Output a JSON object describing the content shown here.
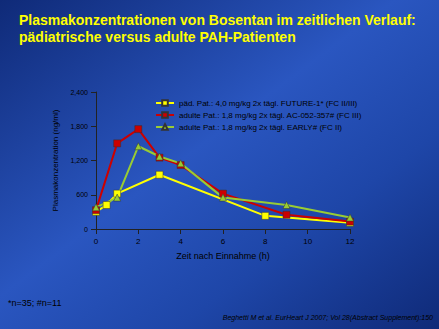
{
  "chart_data": {
    "type": "line",
    "title": "Plasmakonzentrationen von Bosentan im zeitlichen Verlauf: pädiatrische versus adulte PAH-Patienten",
    "x_label": "Zeit nach Einnahme (h)",
    "y_label": "Plasmakonzentration (ng/ml)",
    "xlim": [
      0,
      12
    ],
    "xticks": [
      0,
      2,
      4,
      6,
      8,
      10,
      12
    ],
    "ylim": [
      0,
      2400
    ],
    "yticks": [
      0,
      600,
      1200,
      1800,
      2400
    ],
    "grid": false,
    "legend": "upper right",
    "series": [
      {
        "name": "päd. Pat.: 4,0 mg/kg 2x tägl. FUTURE-1* (FC II/III)",
        "color": "#ffff00",
        "marker": "square",
        "x": [
          0,
          0.5,
          1,
          3,
          8,
          12
        ],
        "values": [
          300,
          420,
          620,
          950,
          230,
          110
        ]
      },
      {
        "name": "adulte Pat.: 1,8 mg/kg 2x tägl. AC-052-357# (FC III)",
        "color": "#cc0000",
        "marker": "square",
        "x": [
          0,
          1,
          2,
          3,
          4,
          6,
          9,
          12
        ],
        "values": [
          330,
          1500,
          1750,
          1250,
          1120,
          620,
          250,
          130
        ]
      },
      {
        "name": "adulte Pat.: 1,8 mg/kg 2x tägl. EARLY# (FC II)",
        "color": "#99cc33",
        "marker": "triangle",
        "x": [
          0,
          1,
          2,
          3,
          4,
          6,
          9,
          12
        ],
        "values": [
          380,
          550,
          1450,
          1270,
          1150,
          550,
          420,
          200
        ]
      }
    ],
    "annotations": [
      "*n=35; #n=11",
      "Beghetti M et al. EurHeart J 2007; Vol 28(Abstract Supplement):150"
    ]
  }
}
